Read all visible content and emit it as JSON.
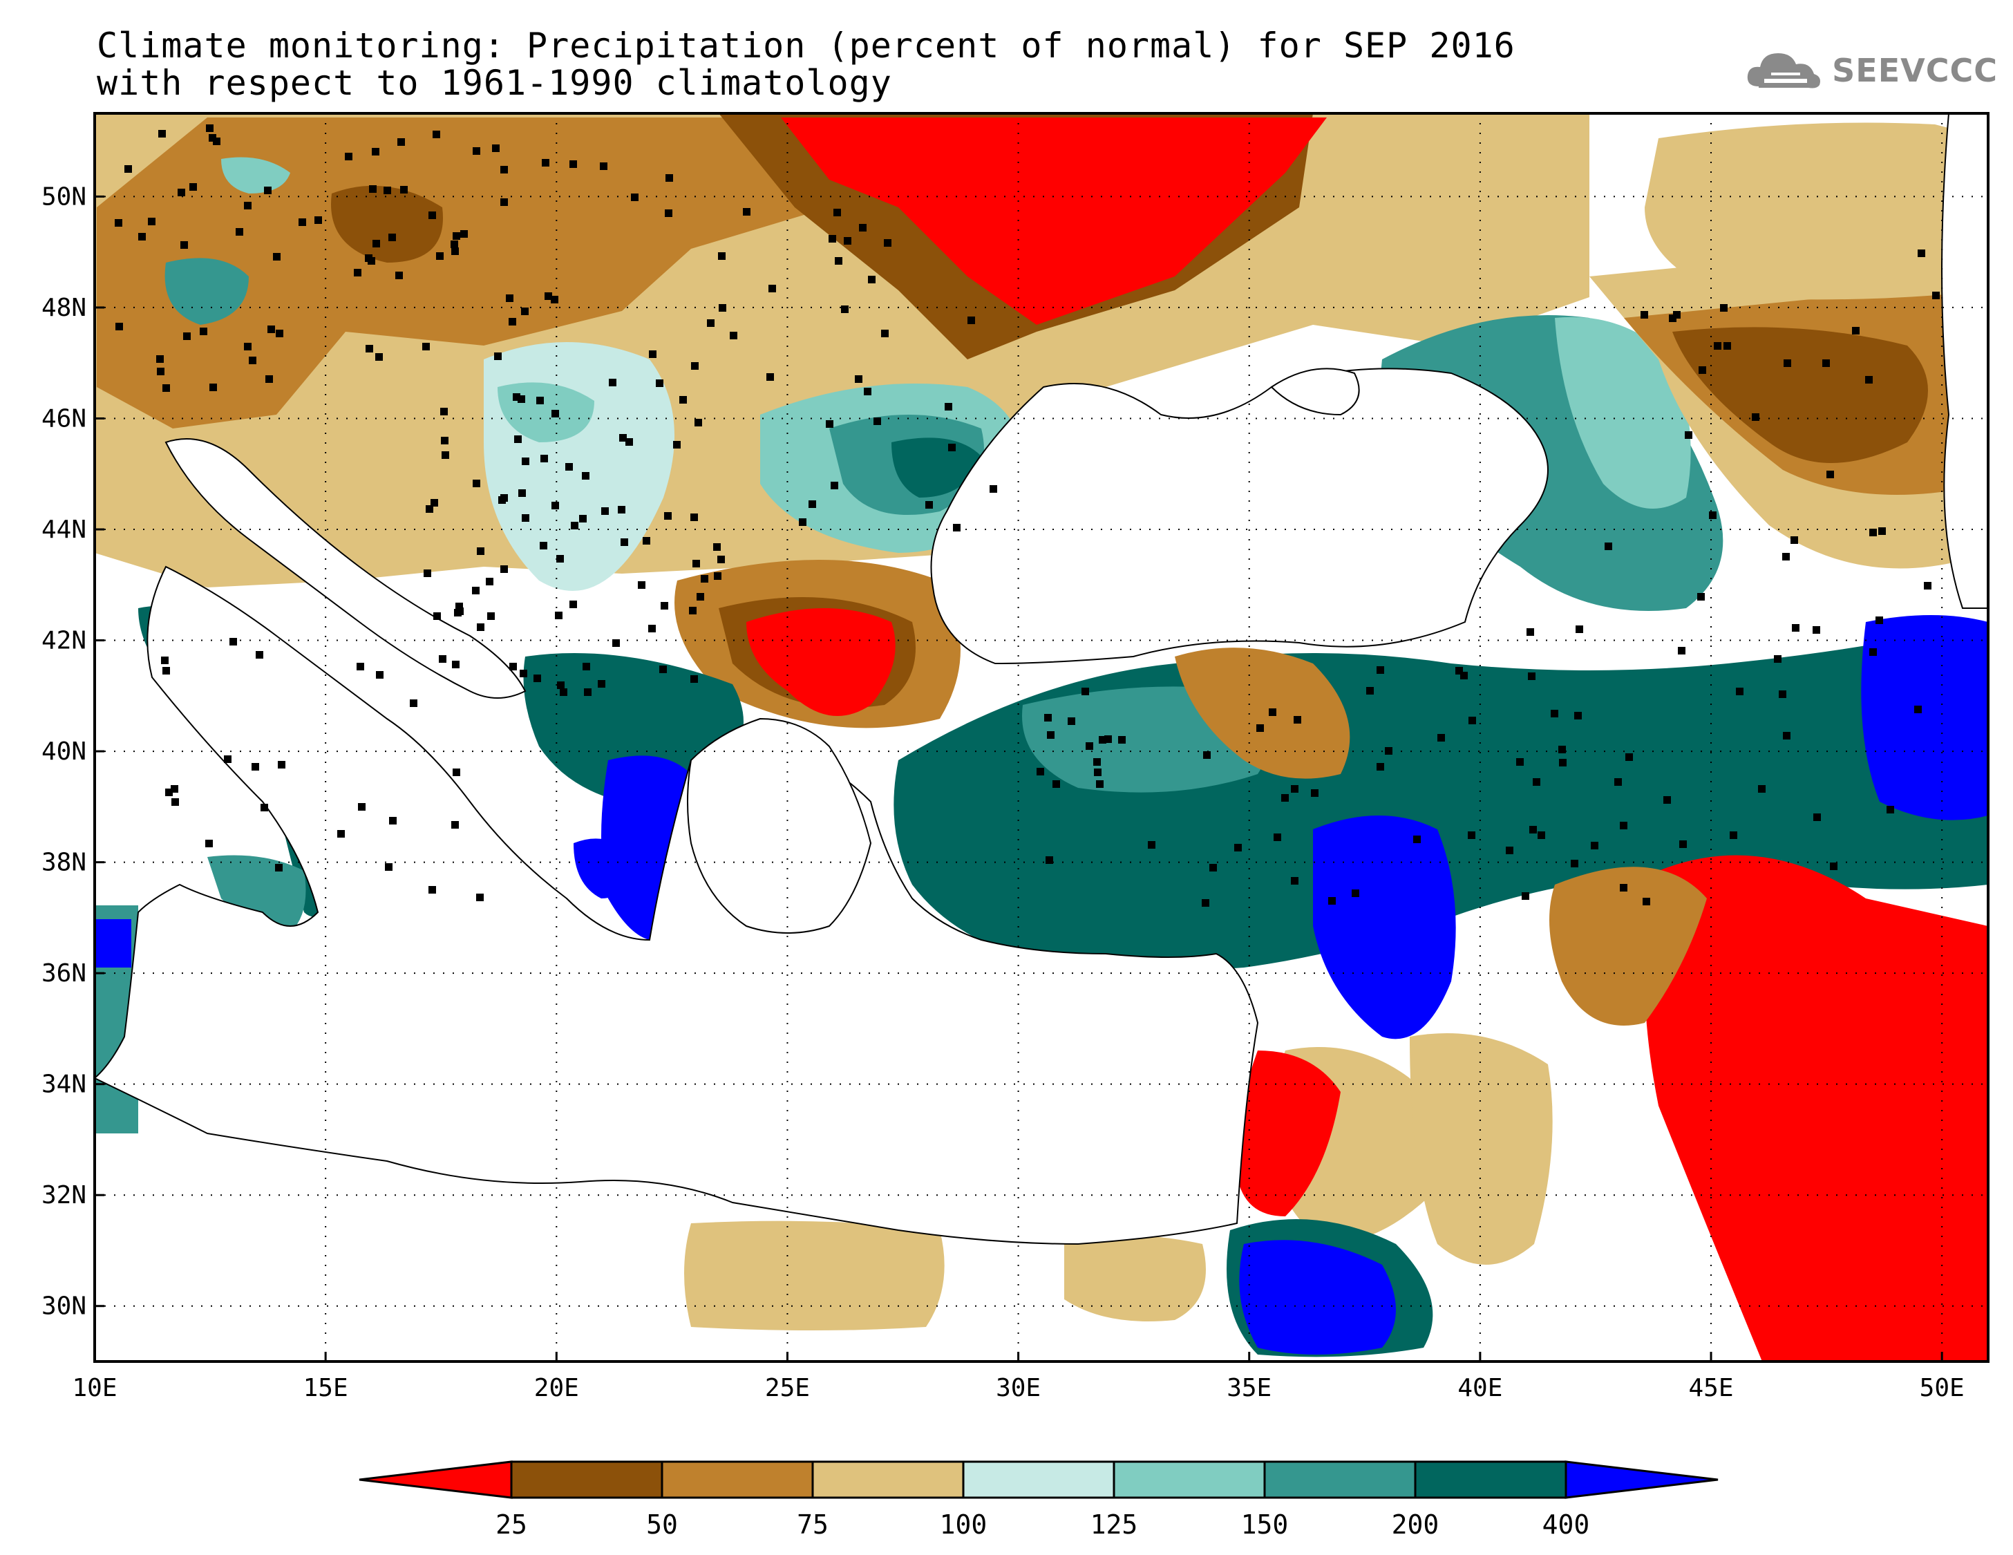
{
  "title": {
    "line1": "Climate monitoring: Precipitation (percent of normal) for SEP 2016",
    "line2": "with respect to 1961-1990 climatology"
  },
  "logo": {
    "icon": "cloud-icon",
    "text": "SEEVCCC"
  },
  "map": {
    "lon_range": [
      10,
      51
    ],
    "lat_range": [
      29,
      51.5
    ],
    "lon_ticks": [
      "10E",
      "15E",
      "20E",
      "25E",
      "30E",
      "35E",
      "40E",
      "45E",
      "50E"
    ],
    "lat_ticks": [
      "30N",
      "32N",
      "34N",
      "36N",
      "38N",
      "40N",
      "42N",
      "44N",
      "46N",
      "48N",
      "50N"
    ]
  },
  "colorbar": {
    "labels": [
      "25",
      "50",
      "75",
      "100",
      "125",
      "150",
      "200",
      "400"
    ],
    "colors": {
      "below_25": "#ff0000",
      "25_50": "#8c510a",
      "50_75": "#bf812d",
      "75_100": "#dfc27d",
      "100_125": "#c7eae5",
      "125_150": "#80cdc1",
      "150_200": "#35978f",
      "200_400": "#01665e",
      "above_400": "#0000ff"
    }
  }
}
